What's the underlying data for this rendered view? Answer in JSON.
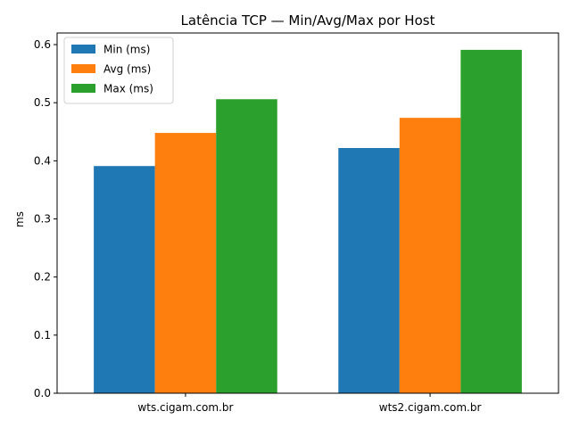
{
  "chart_data": {
    "type": "bar",
    "title": "Latência TCP — Min/Avg/Max por Host",
    "xlabel": "",
    "ylabel": "ms",
    "categories": [
      "wts.cigam.com.br",
      "wts2.cigam.com.br"
    ],
    "series": [
      {
        "name": "Min (ms)",
        "color": "#1f77b4",
        "values": [
          0.391,
          0.422
        ]
      },
      {
        "name": "Avg (ms)",
        "color": "#ff7f0e",
        "values": [
          0.448,
          0.474
        ]
      },
      {
        "name": "Max (ms)",
        "color": "#2ca02c",
        "values": [
          0.506,
          0.591
        ]
      }
    ],
    "ylim": [
      0,
      0.62
    ],
    "yticks": [
      "0.0",
      "0.1",
      "0.2",
      "0.3",
      "0.4",
      "0.5",
      "0.6"
    ],
    "grid": false,
    "legend_position": "top-left"
  }
}
